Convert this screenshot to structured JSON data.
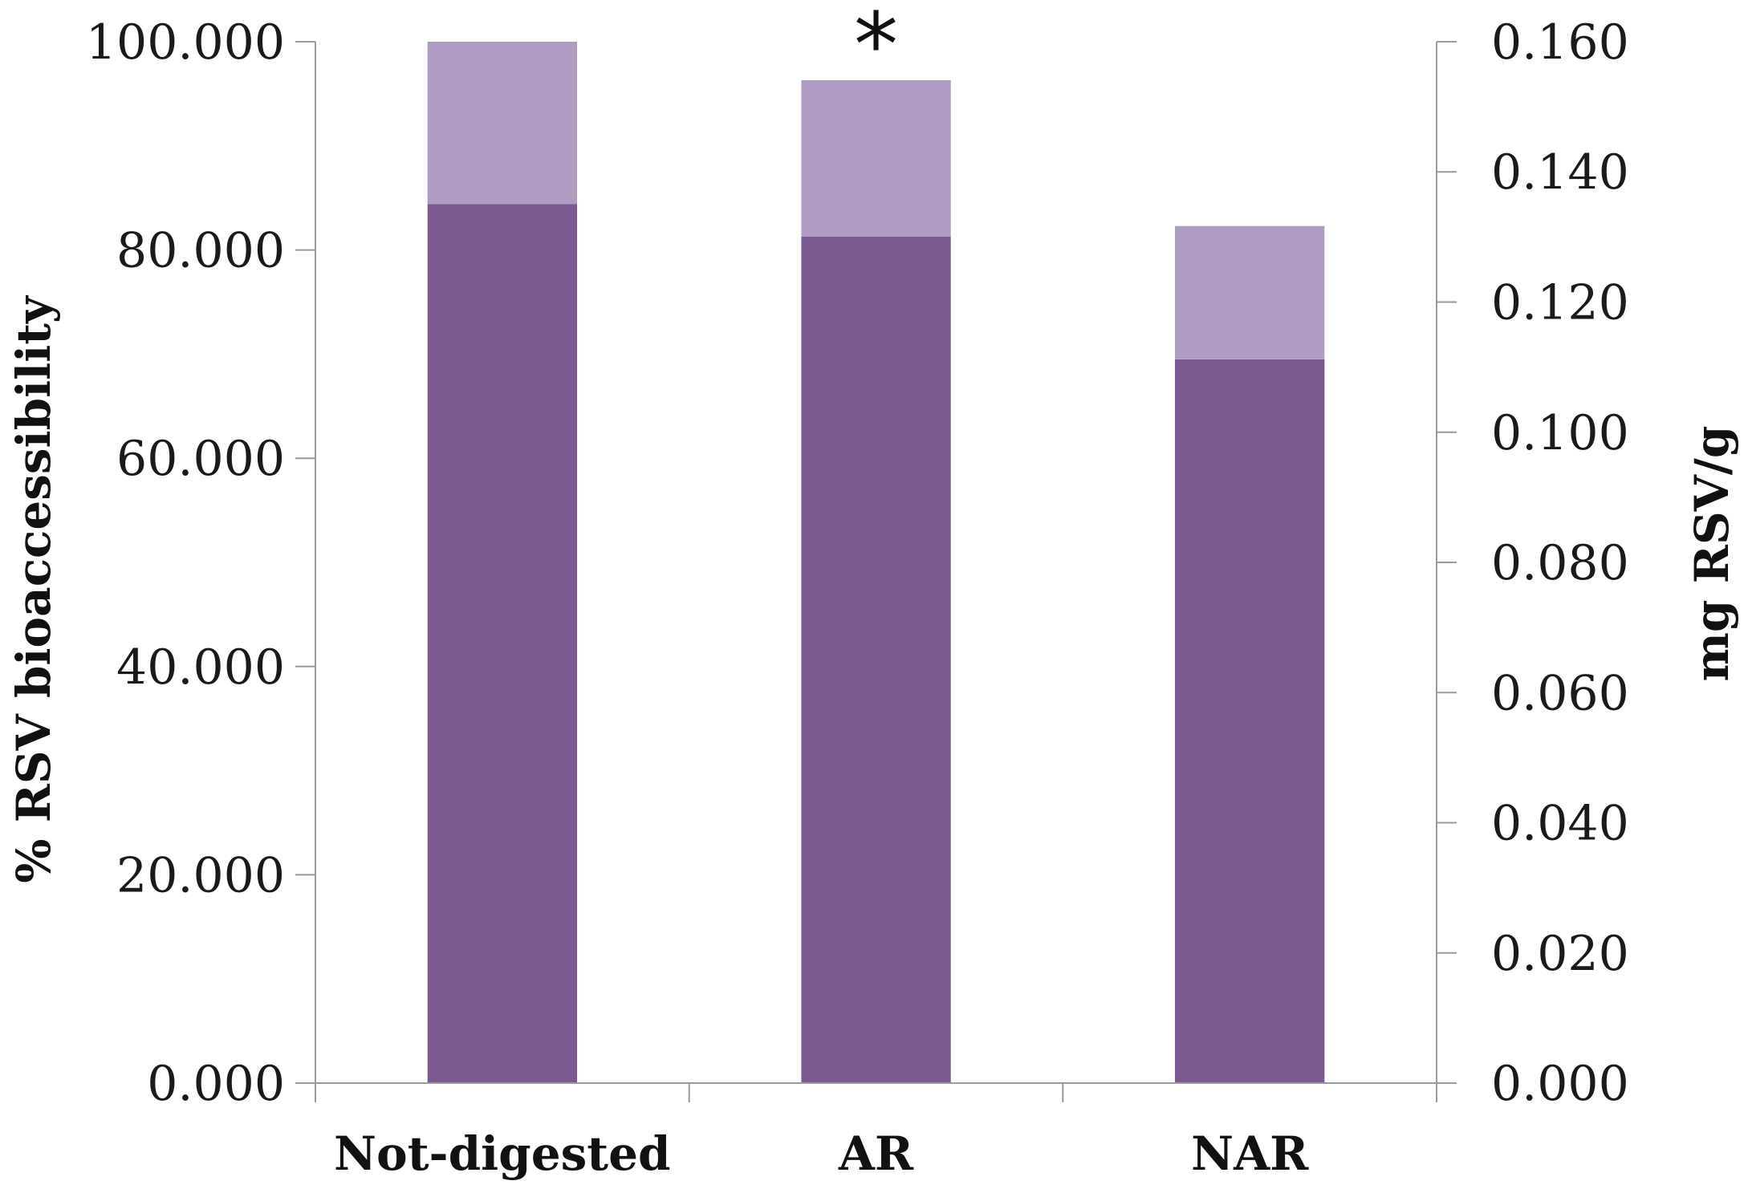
{
  "chart_data": {
    "type": "bar",
    "stacked": true,
    "categories": [
      "Not-digested",
      "AR",
      "NAR"
    ],
    "series": [
      {
        "values": [
          84.4,
          81.3,
          69.5
        ],
        "color": "#7b5a92"
      },
      {
        "values": [
          15.6,
          15.0,
          12.8
        ],
        "color": "#b09cc2"
      }
    ],
    "ylabel": "% RSV bioaccessibility",
    "ylabel_right": "mg RSV/g",
    "ylim": [
      0,
      100
    ],
    "ylim_right": [
      0,
      0.16
    ],
    "yticks": [
      "0.000",
      "20.000",
      "40.000",
      "60.000",
      "80.000",
      "100.000"
    ],
    "yticks_right": [
      "0.000",
      "0.020",
      "0.040",
      "0.060",
      "0.080",
      "0.100",
      "0.120",
      "0.140",
      "0.160"
    ],
    "annotations": [
      {
        "category": "AR",
        "text": "*"
      }
    ],
    "grid": false,
    "legend": "none"
  }
}
